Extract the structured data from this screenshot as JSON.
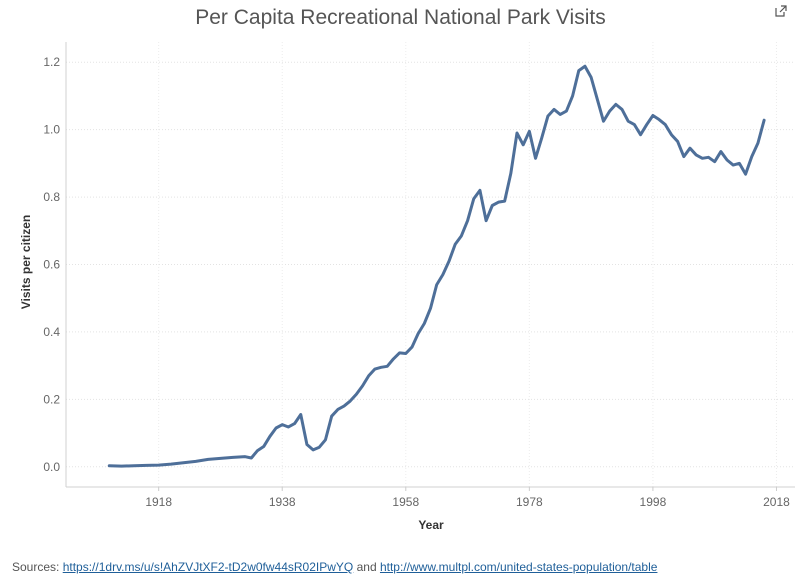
{
  "chart_data": {
    "type": "line",
    "title": "Per Capita Recreational National Park Visits",
    "xlabel": "Year",
    "ylabel": "Visits per citizen",
    "xlim": [
      1903,
      2021
    ],
    "ylim": [
      -0.06,
      1.26
    ],
    "x_ticks": [
      1918,
      1938,
      1958,
      1978,
      1998,
      2018
    ],
    "y_ticks": [
      "0.0",
      "0.2",
      "0.4",
      "0.6",
      "0.8",
      "1.0",
      "1.2"
    ],
    "grid": true,
    "legend": "none",
    "line_color": "#4e6f99",
    "series": [
      {
        "x": [
          1910,
          1912,
          1914,
          1916,
          1918,
          1920,
          1922,
          1924,
          1926,
          1928,
          1930,
          1932,
          1933,
          1934,
          1935,
          1936,
          1937,
          1938,
          1939,
          1940,
          1941,
          1942,
          1943,
          1944,
          1945,
          1946,
          1947,
          1948,
          1949,
          1950,
          1951,
          1952,
          1953,
          1954,
          1955,
          1956,
          1957,
          1958,
          1959,
          1960,
          1961,
          1962,
          1963,
          1964,
          1965,
          1966,
          1967,
          1968,
          1969,
          1970,
          1971,
          1972,
          1973,
          1974,
          1975,
          1976,
          1977,
          1978,
          1979,
          1980,
          1981,
          1982,
          1983,
          1984,
          1985,
          1986,
          1987,
          1988,
          1989,
          1990,
          1991,
          1992,
          1993,
          1994,
          1995,
          1996,
          1997,
          1998,
          1999,
          2000,
          2001,
          2002,
          2003,
          2004,
          2005,
          2006,
          2007,
          2008,
          2009,
          2010,
          2011,
          2012,
          2013,
          2014,
          2015,
          2016
        ],
        "y": [
          0.003,
          0.002,
          0.003,
          0.004,
          0.005,
          0.008,
          0.012,
          0.016,
          0.022,
          0.025,
          0.028,
          0.03,
          0.026,
          0.048,
          0.06,
          0.09,
          0.115,
          0.125,
          0.118,
          0.128,
          0.155,
          0.066,
          0.05,
          0.058,
          0.08,
          0.15,
          0.17,
          0.18,
          0.195,
          0.215,
          0.24,
          0.27,
          0.29,
          0.295,
          0.298,
          0.32,
          0.338,
          0.336,
          0.355,
          0.395,
          0.425,
          0.47,
          0.54,
          0.57,
          0.61,
          0.66,
          0.685,
          0.73,
          0.795,
          0.82,
          0.73,
          0.775,
          0.785,
          0.788,
          0.87,
          0.99,
          0.955,
          0.995,
          0.915,
          0.975,
          1.04,
          1.06,
          1.045,
          1.055,
          1.1,
          1.175,
          1.188,
          1.155,
          1.09,
          1.025,
          1.055,
          1.075,
          1.06,
          1.025,
          1.015,
          0.985,
          1.015,
          1.042,
          1.03,
          1.015,
          0.985,
          0.965,
          0.92,
          0.945,
          0.925,
          0.915,
          0.918,
          0.905,
          0.935,
          0.91,
          0.895,
          0.9,
          0.868,
          0.92,
          0.96,
          1.028
        ]
      }
    ]
  },
  "sources": {
    "prefix": "Sources:",
    "link1": "https://1drv.ms/u/s!AhZVJtXF2-tD2w0fw44sR02IPwYQ",
    "and": "and",
    "link2": "http://www.multpl.com/united-states-population/table"
  }
}
